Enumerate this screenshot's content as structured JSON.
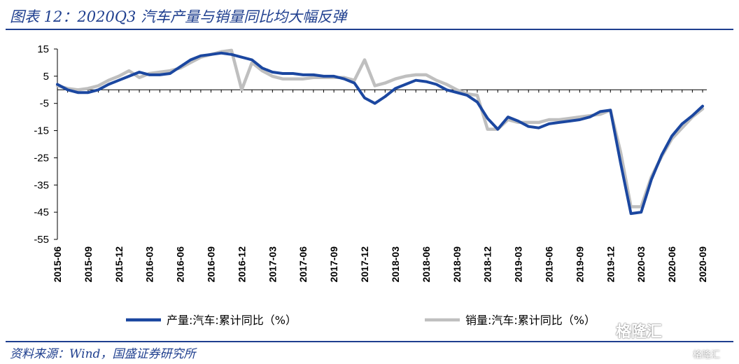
{
  "header": {
    "title": "图表 12：2020Q3 汽车产量与销量同比均大幅反弹"
  },
  "footer": {
    "source": "资料来源：Wind，国盛证券研究所"
  },
  "watermark": {
    "brand": "格隆汇",
    "sub": "格隆汇"
  },
  "colors": {
    "production": "#1b47a0",
    "sales": "#bfbfbf",
    "accent": "#1f3f8f"
  },
  "chart_data": {
    "type": "line",
    "title": "",
    "xlabel": "",
    "ylabel": "",
    "ylim": [
      -55,
      15
    ],
    "yticks": [
      15,
      5,
      -5,
      -15,
      -25,
      -35,
      -45,
      -55
    ],
    "legend_position": "bottom",
    "x_tick_labels": [
      "2015-06",
      "2015-09",
      "2015-12",
      "2016-03",
      "2016-06",
      "2016-09",
      "2016-12",
      "2017-03",
      "2017-06",
      "2017-09",
      "2017-12",
      "2018-03",
      "2018-06",
      "2018-09",
      "2018-12",
      "2019-03",
      "2019-06",
      "2019-09",
      "2019-12",
      "2020-03",
      "2020-06",
      "2020-09"
    ],
    "x": [
      "2015-06",
      "2015-07",
      "2015-08",
      "2015-09",
      "2015-10",
      "2015-11",
      "2015-12",
      "2016-01",
      "2016-02",
      "2016-03",
      "2016-04",
      "2016-05",
      "2016-06",
      "2016-07",
      "2016-08",
      "2016-09",
      "2016-10",
      "2016-11",
      "2016-12",
      "2017-01",
      "2017-02",
      "2017-03",
      "2017-04",
      "2017-05",
      "2017-06",
      "2017-07",
      "2017-08",
      "2017-09",
      "2017-10",
      "2017-11",
      "2017-12",
      "2018-01",
      "2018-02",
      "2018-03",
      "2018-04",
      "2018-05",
      "2018-06",
      "2018-07",
      "2018-08",
      "2018-09",
      "2018-10",
      "2018-11",
      "2018-12",
      "2019-01",
      "2019-02",
      "2019-03",
      "2019-04",
      "2019-05",
      "2019-06",
      "2019-07",
      "2019-08",
      "2019-09",
      "2019-10",
      "2019-11",
      "2019-12",
      "2020-01",
      "2020-02",
      "2020-03",
      "2020-04",
      "2020-05",
      "2020-06",
      "2020-07",
      "2020-08",
      "2020-09"
    ],
    "series": [
      {
        "name": "产量:汽车:累计同比（%）",
        "values": [
          2,
          0,
          -1,
          -1,
          0,
          2,
          3.5,
          5,
          6.5,
          5.5,
          5.5,
          6,
          8.5,
          11,
          12.5,
          13,
          13.5,
          13,
          12,
          11,
          8,
          6.5,
          6,
          6,
          5.5,
          5.5,
          5,
          5,
          4,
          2.5,
          -3,
          -5,
          -2.5,
          0.5,
          2,
          3.5,
          3,
          2,
          0,
          -1,
          -2,
          -4.5,
          -10.5,
          -14.5,
          -10,
          -11.5,
          -13.5,
          -14,
          -12.5,
          -12,
          -11.5,
          -11,
          -10,
          -8,
          -7.5,
          -27,
          -45.5,
          -45,
          -33,
          -24,
          -17,
          -12.5,
          -9.5,
          -6
        ]
      },
      {
        "name": "销量:汽车:累计同比（%）",
        "values": [
          1.5,
          0.5,
          0,
          0.5,
          1.5,
          3.5,
          5,
          7,
          4.5,
          6,
          6.5,
          7,
          8,
          10,
          12,
          13,
          14,
          14.5,
          0,
          10,
          7,
          5,
          4,
          4,
          4,
          4.5,
          4.5,
          4.5,
          4.5,
          3.5,
          11,
          1.5,
          2.5,
          4,
          5,
          5.5,
          5.5,
          3.5,
          2,
          0,
          -1.5,
          -2,
          -14.5,
          -14.5,
          -11,
          -12,
          -12,
          -12,
          -11,
          -11,
          -10.5,
          -10,
          -9.5,
          -9,
          -7.5,
          -23,
          -43,
          -43,
          -32,
          -24.5,
          -18,
          -14,
          -10,
          -7
        ]
      }
    ]
  }
}
